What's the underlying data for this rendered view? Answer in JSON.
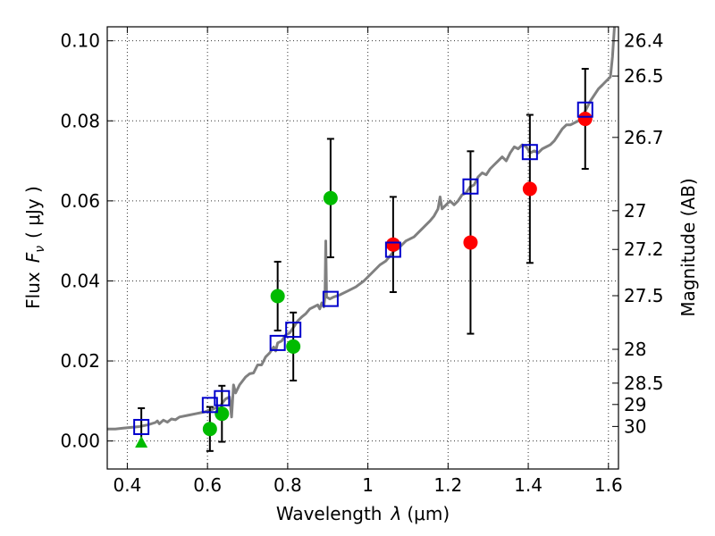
{
  "chart_data": {
    "type": "scatter",
    "xlabel_main": "Wavelength",
    "xlabel_symbol": "λ",
    "xlabel_unit": "(μm)",
    "ylabel_main": "Flux",
    "ylabel_symbol": "F",
    "ylabel_subscript": "ν",
    "ylabel_unit": "( μJy )",
    "y2label": "Magnitude (AB)",
    "xlim": [
      0.35,
      1.625
    ],
    "ylim": [
      -0.007,
      0.1035
    ],
    "grid": true,
    "x_ticks": [
      {
        "value": 0.4,
        "label": "0.4"
      },
      {
        "value": 0.6,
        "label": "0.6"
      },
      {
        "value": 0.8,
        "label": "0.8"
      },
      {
        "value": 1.0,
        "label": "1"
      },
      {
        "value": 1.2,
        "label": "1.2"
      },
      {
        "value": 1.4,
        "label": "1.4"
      },
      {
        "value": 1.6,
        "label": "1.6"
      }
    ],
    "y_ticks": [
      {
        "value": 0.0,
        "label": "0.00"
      },
      {
        "value": 0.02,
        "label": "0.02"
      },
      {
        "value": 0.04,
        "label": "0.04"
      },
      {
        "value": 0.06,
        "label": "0.06"
      },
      {
        "value": 0.08,
        "label": "0.08"
      },
      {
        "value": 0.1,
        "label": "0.10"
      }
    ],
    "mag_ticks": [
      {
        "value": 26.4,
        "label": "26.4"
      },
      {
        "value": 26.5,
        "label": "26.5"
      },
      {
        "value": 26.7,
        "label": "26.7"
      },
      {
        "value": 27.0,
        "label": "27"
      },
      {
        "value": 27.2,
        "label": "27.2"
      },
      {
        "value": 27.5,
        "label": "27.5"
      },
      {
        "value": 28.0,
        "label": "28"
      },
      {
        "value": 28.5,
        "label": "28.5"
      },
      {
        "value": 29.0,
        "label": "29"
      },
      {
        "value": 30.0,
        "label": "30"
      }
    ],
    "series": [
      {
        "marker": "circle",
        "color": "#00bb00",
        "points": [
          {
            "x": 0.606,
            "y": 0.003,
            "err": 0.0055
          },
          {
            "x": 0.636,
            "y": 0.0068,
            "err": 0.007
          },
          {
            "x": 0.775,
            "y": 0.0362,
            "err": 0.0086
          },
          {
            "x": 0.814,
            "y": 0.0236,
            "err": 0.0085
          },
          {
            "x": 0.907,
            "y": 0.0607,
            "err": 0.0148
          }
        ]
      },
      {
        "marker": "triangle",
        "color": "#00bb00",
        "points": [
          {
            "x": 0.435,
            "y": -0.0003
          }
        ]
      },
      {
        "marker": "circle",
        "color": "#ff0000",
        "points": [
          {
            "x": 1.063,
            "y": 0.0491,
            "err": 0.0119
          },
          {
            "x": 1.256,
            "y": 0.0496,
            "err": 0.0228
          },
          {
            "x": 1.404,
            "y": 0.063,
            "err": 0.0185
          },
          {
            "x": 1.542,
            "y": 0.0805,
            "err": 0.0125
          }
        ]
      },
      {
        "marker": "square",
        "color": "#0000cc",
        "points": [
          {
            "x": 0.435,
            "y": 0.0035,
            "err": 0.0047
          },
          {
            "x": 0.606,
            "y": 0.009
          },
          {
            "x": 0.636,
            "y": 0.0107
          },
          {
            "x": 0.775,
            "y": 0.0245
          },
          {
            "x": 0.814,
            "y": 0.0278
          },
          {
            "x": 0.907,
            "y": 0.0355
          },
          {
            "x": 1.063,
            "y": 0.0478
          },
          {
            "x": 1.256,
            "y": 0.0636
          },
          {
            "x": 1.404,
            "y": 0.0722
          },
          {
            "x": 1.542,
            "y": 0.0828
          }
        ]
      }
    ],
    "model_sed": {
      "color": "#808080",
      "points": [
        [
          0.35,
          0.003
        ],
        [
          0.37,
          0.003
        ],
        [
          0.39,
          0.0032
        ],
        [
          0.41,
          0.0034
        ],
        [
          0.43,
          0.0036
        ],
        [
          0.45,
          0.004
        ],
        [
          0.47,
          0.0046
        ],
        [
          0.475,
          0.005
        ],
        [
          0.48,
          0.0043
        ],
        [
          0.49,
          0.0052
        ],
        [
          0.5,
          0.0047
        ],
        [
          0.51,
          0.0055
        ],
        [
          0.52,
          0.0053
        ],
        [
          0.53,
          0.006
        ],
        [
          0.55,
          0.0064
        ],
        [
          0.57,
          0.0068
        ],
        [
          0.59,
          0.0072
        ],
        [
          0.61,
          0.0078
        ],
        [
          0.625,
          0.0085
        ],
        [
          0.63,
          0.007
        ],
        [
          0.635,
          0.0092
        ],
        [
          0.645,
          0.0105
        ],
        [
          0.655,
          0.011
        ],
        [
          0.66,
          0.006
        ],
        [
          0.665,
          0.014
        ],
        [
          0.67,
          0.012
        ],
        [
          0.68,
          0.014
        ],
        [
          0.695,
          0.016
        ],
        [
          0.705,
          0.0168
        ],
        [
          0.715,
          0.017
        ],
        [
          0.725,
          0.019
        ],
        [
          0.735,
          0.019
        ],
        [
          0.745,
          0.021
        ],
        [
          0.755,
          0.022
        ],
        [
          0.765,
          0.0235
        ],
        [
          0.77,
          0.0225
        ],
        [
          0.775,
          0.0245
        ],
        [
          0.785,
          0.025
        ],
        [
          0.795,
          0.0265
        ],
        [
          0.805,
          0.027
        ],
        [
          0.815,
          0.0285
        ],
        [
          0.825,
          0.03
        ],
        [
          0.835,
          0.031
        ],
        [
          0.845,
          0.0318
        ],
        [
          0.855,
          0.033
        ],
        [
          0.865,
          0.0335
        ],
        [
          0.875,
          0.034
        ],
        [
          0.88,
          0.033
        ],
        [
          0.885,
          0.0345
        ],
        [
          0.89,
          0.0335
        ],
        [
          0.893,
          0.036
        ],
        [
          0.895,
          0.05
        ],
        [
          0.897,
          0.036
        ],
        [
          0.905,
          0.0355
        ],
        [
          0.915,
          0.036
        ],
        [
          0.93,
          0.0365
        ],
        [
          0.95,
          0.0375
        ],
        [
          0.97,
          0.0385
        ],
        [
          0.99,
          0.04
        ],
        [
          1.01,
          0.042
        ],
        [
          1.03,
          0.044
        ],
        [
          1.045,
          0.045
        ],
        [
          1.055,
          0.0462
        ],
        [
          1.065,
          0.0475
        ],
        [
          1.075,
          0.048
        ],
        [
          1.085,
          0.049
        ],
        [
          1.095,
          0.05
        ],
        [
          1.105,
          0.0505
        ],
        [
          1.115,
          0.051
        ],
        [
          1.125,
          0.052
        ],
        [
          1.135,
          0.053
        ],
        [
          1.145,
          0.054
        ],
        [
          1.155,
          0.055
        ],
        [
          1.165,
          0.0562
        ],
        [
          1.175,
          0.058
        ],
        [
          1.18,
          0.061
        ],
        [
          1.185,
          0.058
        ],
        [
          1.195,
          0.059
        ],
        [
          1.205,
          0.06
        ],
        [
          1.215,
          0.059
        ],
        [
          1.225,
          0.06
        ],
        [
          1.235,
          0.0615
        ],
        [
          1.245,
          0.062
        ],
        [
          1.255,
          0.0635
        ],
        [
          1.265,
          0.064
        ],
        [
          1.275,
          0.066
        ],
        [
          1.285,
          0.067
        ],
        [
          1.295,
          0.0665
        ],
        [
          1.305,
          0.068
        ],
        [
          1.315,
          0.069
        ],
        [
          1.325,
          0.07
        ],
        [
          1.335,
          0.071
        ],
        [
          1.345,
          0.07
        ],
        [
          1.355,
          0.072
        ],
        [
          1.365,
          0.0735
        ],
        [
          1.375,
          0.073
        ],
        [
          1.385,
          0.074
        ],
        [
          1.395,
          0.0735
        ],
        [
          1.405,
          0.072
        ],
        [
          1.415,
          0.0725
        ],
        [
          1.425,
          0.072
        ],
        [
          1.435,
          0.073
        ],
        [
          1.445,
          0.0735
        ],
        [
          1.455,
          0.074
        ],
        [
          1.465,
          0.075
        ],
        [
          1.475,
          0.0765
        ],
        [
          1.485,
          0.078
        ],
        [
          1.495,
          0.079
        ],
        [
          1.505,
          0.079
        ],
        [
          1.515,
          0.0795
        ],
        [
          1.525,
          0.08
        ],
        [
          1.535,
          0.081
        ],
        [
          1.545,
          0.083
        ],
        [
          1.555,
          0.085
        ],
        [
          1.565,
          0.0865
        ],
        [
          1.575,
          0.088
        ],
        [
          1.585,
          0.089
        ],
        [
          1.595,
          0.09
        ],
        [
          1.605,
          0.091
        ],
        [
          1.61,
          0.096
        ],
        [
          1.615,
          0.1035
        ]
      ]
    }
  }
}
